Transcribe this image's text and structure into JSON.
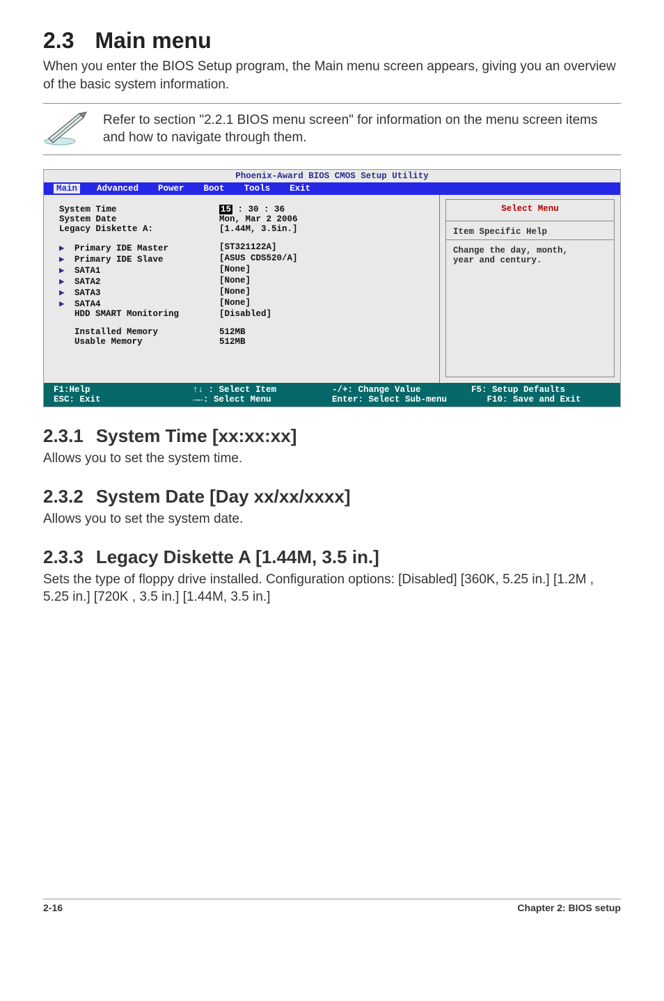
{
  "header": {
    "num": "2.3",
    "title": "Main menu"
  },
  "intro": "When you enter the BIOS Setup program, the Main menu screen appears, giving you an overview of the basic system information.",
  "note": "Refer to section \"2.2.1  BIOS menu screen\" for information on the menu screen items and how to navigate through them.",
  "bios": {
    "title": "Phoenix-Award BIOS CMOS Setup Utility",
    "tabs": [
      "Main",
      "Advanced",
      "Power",
      "Boot",
      "Tools",
      "Exit"
    ],
    "activeTab": "Main",
    "colors": {
      "bar_bg": "#2727e8",
      "bar_fg": "#ffffff",
      "body_bg": "#e9e9e9",
      "accent": "#2c2c90",
      "footer_bg": "#066868",
      "select_menu": "#b00000"
    },
    "rows_top": [
      {
        "label": "System Time",
        "hour": "15",
        "rest": " : 30 : 36"
      },
      {
        "label": "System Date",
        "value": "Mon, Mar 2 2006"
      },
      {
        "label": "Legacy Diskette A:",
        "value": "[1.44M, 3.5in.]"
      }
    ],
    "rows_arrow": [
      {
        "label": "Primary IDE Master",
        "value": "[ST321122A]"
      },
      {
        "label": "Primary IDE Slave",
        "value": "[ASUS CDS520/A]"
      },
      {
        "label": "SATA1",
        "value": "[None]"
      },
      {
        "label": "SATA2",
        "value": "[None]"
      },
      {
        "label": "SATA3",
        "value": "[None]"
      },
      {
        "label": "SATA4",
        "value": "[None]"
      }
    ],
    "rows_noarrow": [
      {
        "label": "HDD SMART Monitoring",
        "value": "[Disabled]"
      }
    ],
    "rows_mem": [
      {
        "label": "Installed Memory",
        "value": "512MB"
      },
      {
        "label": "Usable Memory",
        "value": "512MB"
      }
    ],
    "help": {
      "title": "Select Menu",
      "l1": "Item Specific Help",
      "l2": "Change the day, month,",
      "l3": "year and century."
    },
    "footer": {
      "c1a": "F1:Help",
      "c2a": "↑↓ : Select Item",
      "c3a": "-/+: Change Value",
      "c4a": "F5: Setup Defaults",
      "c1b": "ESC: Exit",
      "c2b": "→←: Select Menu",
      "c3b": "Enter: Select Sub-menu",
      "c4b": "   F10: Save and Exit"
    }
  },
  "s1": {
    "num": "2.3.1",
    "title": "System Time [xx:xx:xx]",
    "body": "Allows you to set the system time."
  },
  "s2": {
    "num": "2.3.2",
    "title": "System Date [Day xx/xx/xxxx]",
    "body": "Allows you to set the system date."
  },
  "s3": {
    "num": "2.3.3",
    "title": "Legacy Diskette A [1.44M, 3.5 in.]",
    "body": "Sets the type of floppy drive installed. Configuration options: [Disabled] [360K, 5.25 in.] [1.2M , 5.25 in.] [720K , 3.5 in.] [1.44M, 3.5 in.]"
  },
  "footer": {
    "left": "2-16",
    "right": "Chapter 2: BIOS setup"
  }
}
